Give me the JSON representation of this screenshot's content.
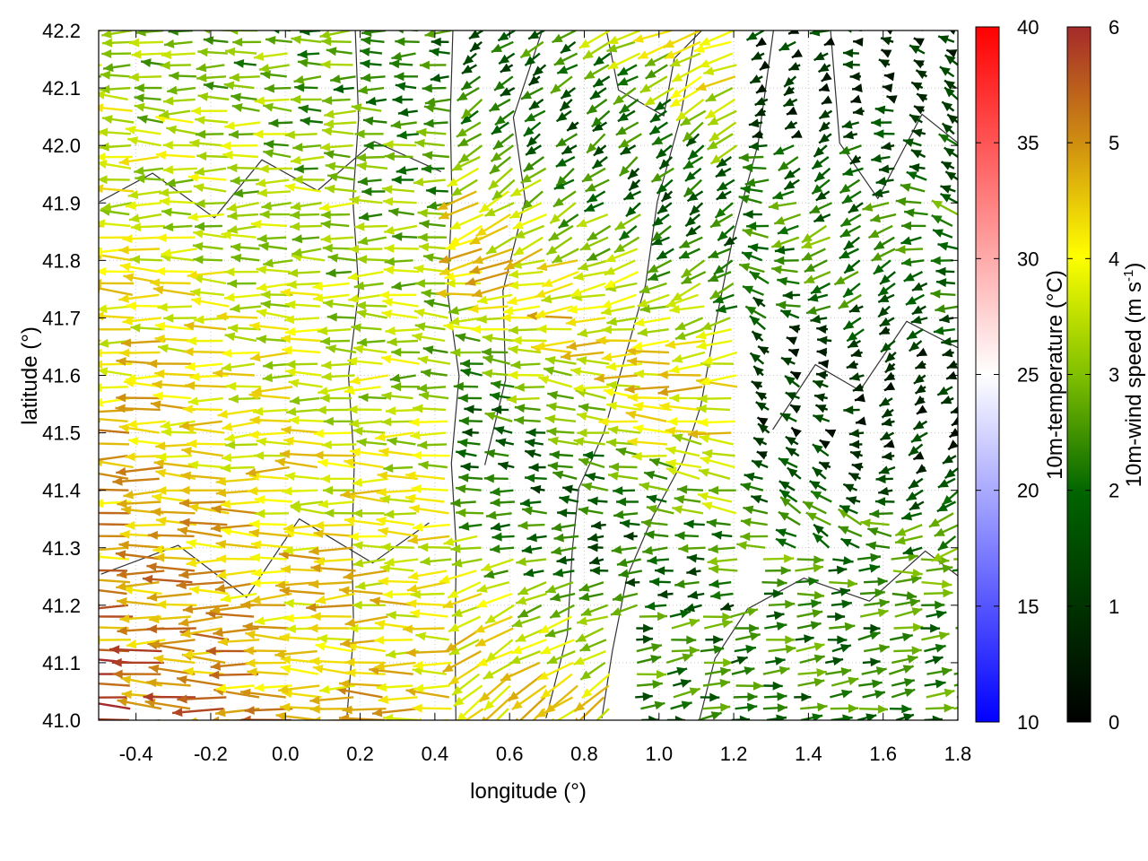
{
  "chart_data": {
    "type": "vector-field",
    "xlabel": "longitude (°)",
    "ylabel": "latitude (°)",
    "xlim": [
      -0.5,
      1.8
    ],
    "ylim": [
      41.0,
      42.2
    ],
    "xticks": [
      "-0.4",
      "-0.2",
      "0.0",
      "0.2",
      "0.4",
      "0.6",
      "0.8",
      "1.0",
      "1.2",
      "1.4",
      "1.6",
      "1.8"
    ],
    "yticks": [
      "41.0",
      "41.1",
      "41.2",
      "41.3",
      "41.4",
      "41.5",
      "41.6",
      "41.7",
      "41.8",
      "41.9",
      "42.0",
      "42.1",
      "42.2"
    ],
    "grid": true,
    "contours": true,
    "colorbars": [
      {
        "label": "10m-temperature (°C)",
        "range": [
          10,
          40
        ],
        "ticks": [
          "10",
          "15",
          "20",
          "25",
          "30",
          "35",
          "40"
        ],
        "colors": [
          "#0000ff",
          "#ffffff",
          "#ff0000"
        ]
      },
      {
        "label": "10m-wind speed (m s",
        "label_sup": "-1",
        "label_end": ")",
        "range": [
          0,
          6
        ],
        "ticks": [
          "0",
          "1",
          "2",
          "3",
          "4",
          "5",
          "6"
        ],
        "colors": [
          "#000000",
          "#006400",
          "#80c000",
          "#ffff00",
          "#d09010",
          "#a52a2a"
        ]
      }
    ]
  }
}
